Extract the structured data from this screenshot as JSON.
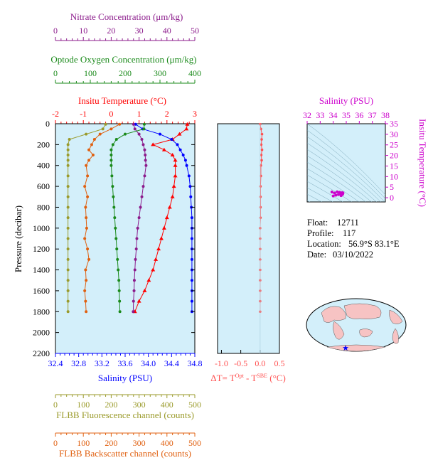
{
  "axes": {
    "nitrate": {
      "label": "Nitrate Concentration (μm/kg)",
      "ticks": [
        "0",
        "10",
        "20",
        "30",
        "40",
        "50"
      ],
      "range": [
        0,
        50
      ],
      "color": "#8b1a8b"
    },
    "oxygen": {
      "label": "Optode Oxygen Concentration (μm/kg)",
      "ticks": [
        "0",
        "100",
        "200",
        "300",
        "400"
      ],
      "range": [
        0,
        400
      ],
      "color": "#1a8a1a"
    },
    "temperature": {
      "label": "Insitu Temperature (°C)",
      "ticks": [
        "-2",
        "-1",
        "0",
        "1",
        "2",
        "3"
      ],
      "range": [
        -2,
        3
      ],
      "color": "#ff0000"
    },
    "pressure": {
      "label": "Pressure (decibar)",
      "ticks": [
        "0",
        "200",
        "400",
        "600",
        "800",
        "1000",
        "1200",
        "1400",
        "1600",
        "1800",
        "2000",
        "2200"
      ],
      "range": [
        0,
        2200
      ]
    },
    "salinity": {
      "label": "Salinity (PSU)",
      "ticks": [
        "32.4",
        "32.8",
        "33.2",
        "33.6",
        "34.0",
        "34.4",
        "34.8"
      ],
      "range": [
        32.4,
        34.8
      ],
      "color": "#0000ff"
    },
    "fluorescence": {
      "label": "FLBB Fluorescence channel (counts)",
      "ticks": [
        "0",
        "100",
        "200",
        "300",
        "400",
        "500"
      ],
      "range": [
        0,
        500
      ],
      "color": "#9a9a2a"
    },
    "backscatter": {
      "label": "FLBB Backscatter channel (counts)",
      "ticks": [
        "0",
        "100",
        "200",
        "300",
        "400",
        "500"
      ],
      "range": [
        0,
        500
      ],
      "color": "#e06010"
    }
  },
  "delta_panel": {
    "label_main": "ΔT= T",
    "sup1": "Opt",
    "mid": " - T",
    "sup2": "SBE",
    "unit": " (°C)",
    "ticks": [
      "-1.0",
      "-0.5",
      "0.0",
      "0.5"
    ],
    "range": [
      -1.1,
      0.5
    ],
    "color": "#ff5050"
  },
  "ts_panel": {
    "salinity_label": "Salinity (PSU)",
    "salinity_ticks": [
      "32",
      "33",
      "34",
      "35",
      "36",
      "37",
      "38"
    ],
    "salinity_range": [
      32,
      38
    ],
    "temperature_label": "Insitu Temperature (°C)",
    "temperature_ticks": [
      "0",
      "5",
      "10",
      "15",
      "20",
      "25",
      "30",
      "35"
    ],
    "temperature_range": [
      -2,
      35
    ],
    "color": "#cc00cc"
  },
  "info": {
    "float_label": "Float:",
    "float_value": "12711",
    "profile_label": "Profile:",
    "profile_value": "117",
    "location_label": "Location:",
    "location_value": "56.9°S 83.1°E",
    "date_label": "Date:",
    "date_value": "03/10/2022"
  },
  "chart_data": {
    "type": "line",
    "pressure": [
      5,
      50,
      100,
      150,
      200,
      250,
      300,
      350,
      400,
      500,
      600,
      700,
      800,
      900,
      1000,
      1100,
      1200,
      1300,
      1400,
      1500,
      1600,
      1700,
      1800
    ],
    "series": [
      {
        "name": "Insitu Temperature (°C)",
        "axis": "temperature",
        "marker": "triangle",
        "values": [
          2.73,
          2.7,
          2.45,
          2.2,
          1.5,
          1.9,
          2.2,
          2.3,
          2.3,
          2.3,
          2.25,
          2.2,
          2.1,
          2.0,
          1.9,
          1.8,
          1.7,
          1.6,
          1.5,
          1.35,
          1.2,
          1.0,
          0.85
        ]
      },
      {
        "name": "Salinity (PSU)",
        "axis": "salinity",
        "marker": "circle",
        "values": [
          33.78,
          33.9,
          34.2,
          34.4,
          34.5,
          34.55,
          34.6,
          34.64,
          34.66,
          34.7,
          34.72,
          34.73,
          34.74,
          34.75,
          34.75,
          34.75,
          34.75,
          34.75,
          34.75,
          34.75,
          34.75,
          34.75,
          34.75
        ]
      },
      {
        "name": "Nitrate Concentration (μm/kg)",
        "axis": "nitrate",
        "marker": "circle",
        "values": [
          28,
          28.5,
          30,
          31,
          31.5,
          32,
          32.2,
          32.3,
          32.5,
          32,
          31.5,
          31,
          30.5,
          30,
          29.5,
          29.2,
          29,
          28.7,
          28.5,
          28.3,
          28.2,
          28,
          27.9
        ]
      },
      {
        "name": "Optode Oxygen Concentration (μm/kg)",
        "axis": "oxygen",
        "marker": "circle",
        "values": [
          255,
          254,
          200,
          175,
          165,
          160,
          160,
          160,
          160,
          162,
          164,
          166,
          168,
          170,
          172,
          174,
          176,
          178,
          180,
          182,
          183,
          184,
          185
        ]
      },
      {
        "name": "FLBB Fluorescence channel (counts)",
        "axis": "fluorescence",
        "marker": "circle",
        "values": [
          180,
          170,
          110,
          50,
          45,
          45,
          45,
          45,
          45,
          45,
          45,
          45,
          45,
          45,
          45,
          45,
          45,
          45,
          45,
          45,
          45,
          45,
          45
        ]
      },
      {
        "name": "FLBB Backscatter channel (counts)",
        "axis": "backscatter",
        "marker": "circle",
        "values": [
          230,
          200,
          160,
          140,
          130,
          120,
          135,
          120,
          110,
          115,
          105,
          115,
          108,
          110,
          112,
          105,
          115,
          120,
          108,
          110,
          105,
          108,
          110
        ]
      }
    ],
    "delta_t": [
      0.0,
      0.02,
      0.05,
      0.04,
      0.03,
      0.05,
      0.03,
      0.04,
      0.02,
      0.02,
      0.01,
      0.01,
      0.01,
      0.01,
      0.0,
      0.0,
      0.0,
      0.0,
      0.0,
      0.0,
      0.0,
      0.0,
      0.0
    ],
    "ts_points": [
      {
        "s": 34.0,
        "t": 0.8
      },
      {
        "s": 34.2,
        "t": 1.2
      },
      {
        "s": 34.4,
        "t": 1.5
      },
      {
        "s": 34.6,
        "t": 2.0
      },
      {
        "s": 34.7,
        "t": 2.4
      },
      {
        "s": 34.75,
        "t": 2.2
      },
      {
        "s": 34.72,
        "t": 1.6
      },
      {
        "s": 34.5,
        "t": 2.6
      },
      {
        "s": 34.3,
        "t": 2.8
      },
      {
        "s": 33.9,
        "t": 2.7
      },
      {
        "s": 34.1,
        "t": 2.2
      },
      {
        "s": 34.6,
        "t": 1.0
      }
    ]
  }
}
